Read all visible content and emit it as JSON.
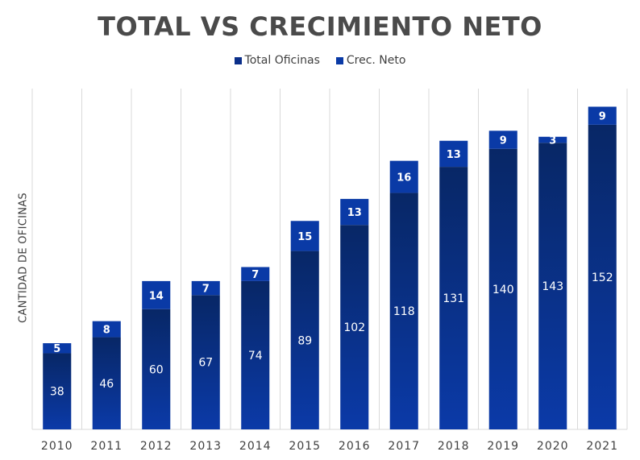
{
  "chart_data": {
    "type": "bar",
    "stacked": true,
    "title": "TOTAL VS CRECIMIENTO NETO",
    "xlabel": "",
    "ylabel": "CANTIDAD DE OFICINAS",
    "categories": [
      "2010",
      "2011",
      "2012",
      "2013",
      "2014",
      "2015",
      "2016",
      "2017",
      "2018",
      "2019",
      "2020",
      "2021"
    ],
    "series": [
      {
        "name": "Total Oficinas",
        "values": [
          38,
          46,
          60,
          67,
          74,
          89,
          102,
          118,
          131,
          140,
          143,
          152
        ],
        "color": "#0b2f8a"
      },
      {
        "name": "Crec. Neto",
        "values": [
          5,
          8,
          14,
          7,
          7,
          15,
          13,
          16,
          13,
          9,
          3,
          9
        ],
        "color": "#0a3aa6"
      }
    ],
    "ylim": [
      0,
      170
    ],
    "grid": "vertical",
    "legend_position": "top"
  }
}
